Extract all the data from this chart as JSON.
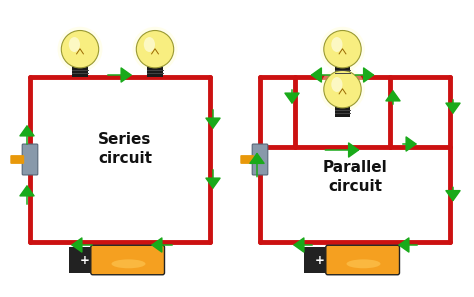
{
  "bg_color": "#ffffff",
  "wire_color": "#cc1111",
  "arrow_color": "#1aaa1a",
  "battery_body_color": "#f5a020",
  "battery_dark_color": "#222222",
  "switch_color": "#8899aa",
  "bulb_glass_color": "#f8ee80",
  "bulb_glow_color": "#fffdd0",
  "bulb_base_color": "#1a1a1a",
  "text_series": "Series\ncircuit",
  "text_parallel": "Parallel\ncircuit",
  "text_color": "#111111",
  "label_fontsize": 11,
  "wire_lw": 3.5
}
